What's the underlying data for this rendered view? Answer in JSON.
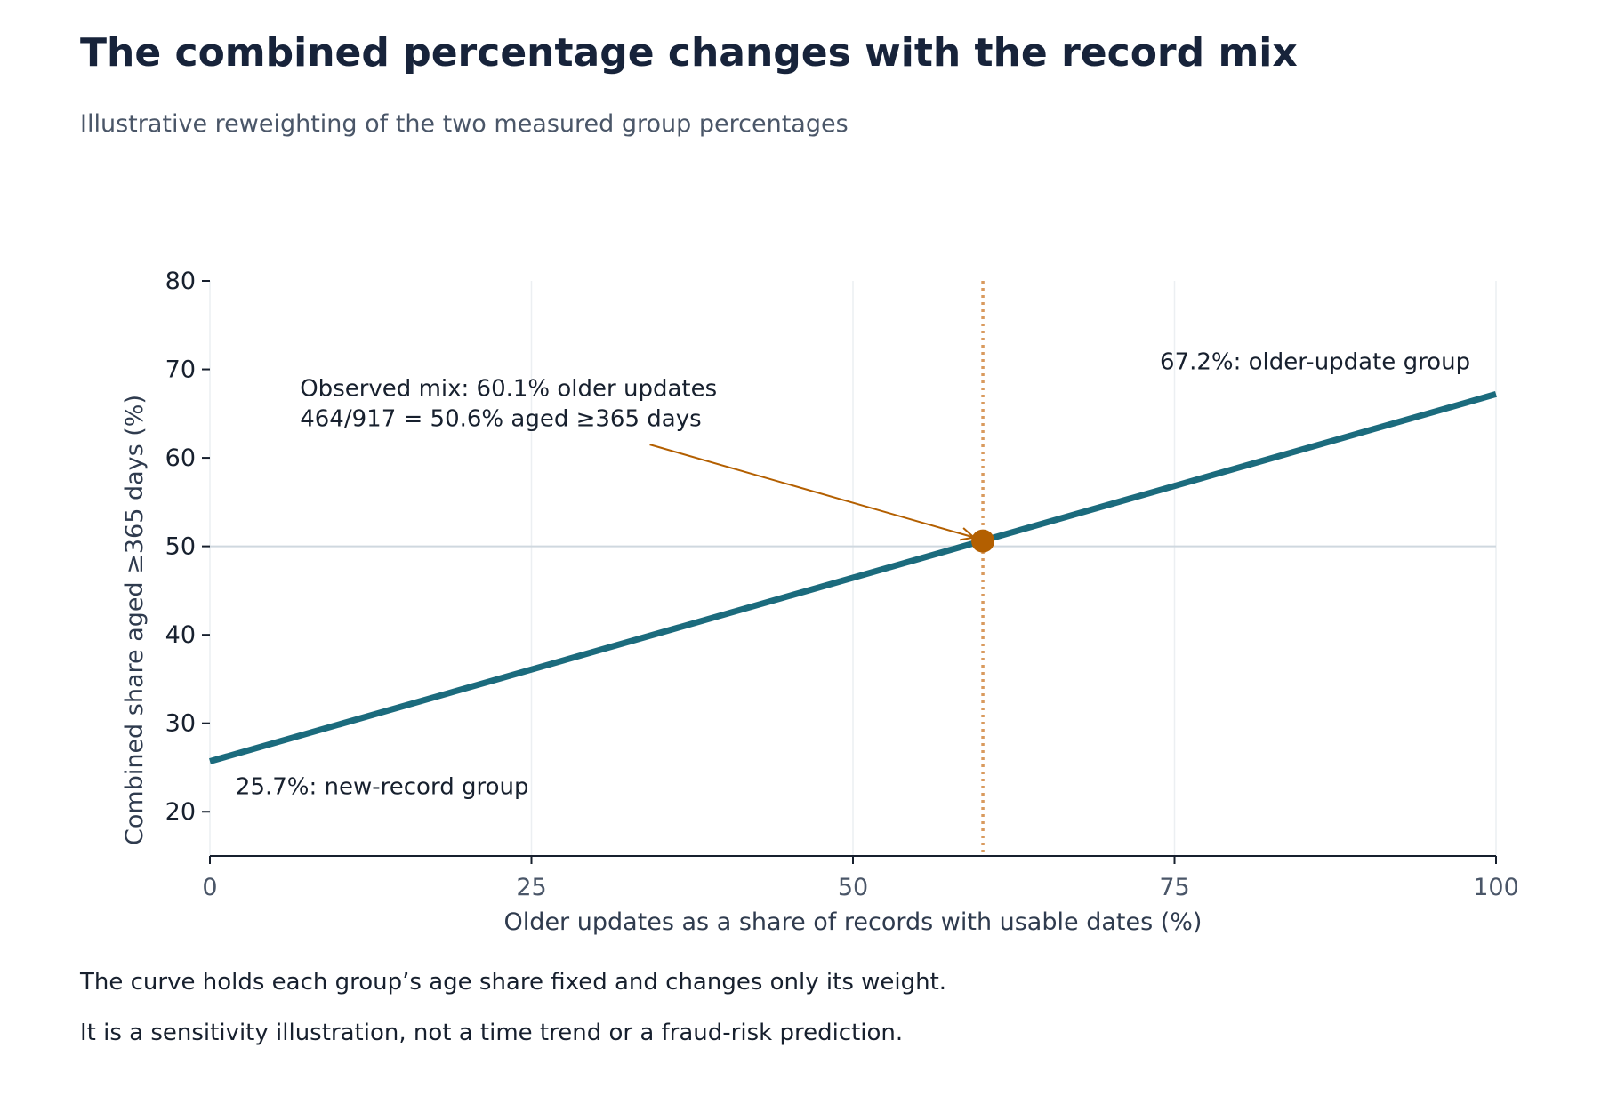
{
  "title": "The combined percentage changes with the record mix",
  "subtitle": "Illustrative reweighting of the two measured group percentages",
  "notes": [
    "The curve holds each group’s age share fixed and changes only its weight.",
    "It is a sensitivity illustration, not a time trend or a fraud-risk prediction."
  ],
  "colors": {
    "line": "#1b6b7d",
    "marker": "#b35f00",
    "reference_dotted": "#d99a5e",
    "reference_horizontal": "#cfd8df",
    "grid": "#eceff2",
    "axis": "#17202e",
    "x_tick_text": "#4a5668",
    "y_tick_text": "#17202e"
  },
  "chart_data": {
    "type": "line",
    "xlabel": "Older updates as a share of records with usable dates (%)",
    "ylabel": "Combined share aged ≥365 days (%)",
    "xlim": [
      0,
      100
    ],
    "ylim": [
      15,
      80
    ],
    "x_ticks": [
      0,
      25,
      50,
      75,
      100
    ],
    "y_ticks": [
      20,
      30,
      40,
      50,
      60,
      70,
      80
    ],
    "grid": "vertical",
    "series": [
      {
        "x": [
          0,
          100
        ],
        "y": [
          25.7,
          67.2
        ]
      }
    ],
    "observed_point": {
      "x": 60.1,
      "y": 50.6
    },
    "reference_lines": {
      "vertical_x": 60.1,
      "horizontal_y": 50.0
    },
    "annotations": {
      "observed": [
        "Observed mix: 60.1% older updates",
        "464/917 = 50.6% aged ≥365 days"
      ],
      "observed_text_anchor": {
        "x": 7,
        "y": 67
      },
      "arrow_start": {
        "x": 34.2,
        "y": 61.5
      },
      "new_group_label": "25.7%: new-record group",
      "new_group_anchor": {
        "x": 2,
        "y": 22
      },
      "older_group_label": "67.2%: older-update group",
      "older_group_anchor": {
        "x": 98,
        "y": 70
      }
    }
  }
}
